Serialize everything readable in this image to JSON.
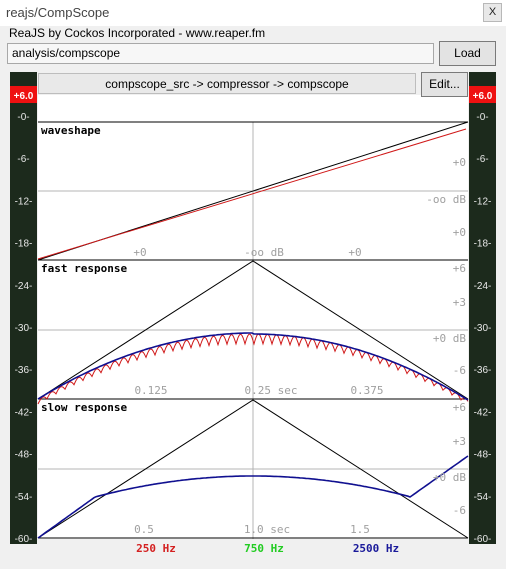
{
  "window": {
    "title": "reajs/CompScope",
    "close_glyph": "X"
  },
  "plugin": {
    "subtitle": "ReaJS by Cockos Incorporated - www.reaper.fm"
  },
  "path_field": {
    "value": "analysis/compscope"
  },
  "load_button": {
    "label": "Load"
  },
  "routing": {
    "text": "compscope_src -> compressor -> compscope"
  },
  "edit_button": {
    "label": "Edit..."
  },
  "meters": {
    "left_peak": "+6.0",
    "right_peak": "+6.0",
    "scale": [
      "-0-",
      "-6-",
      "-12-",
      "-18-",
      "-24-",
      "-30-",
      "-36-",
      "-42-",
      "-48-",
      "-54-",
      "-60-"
    ]
  },
  "panels": {
    "waveshape": {
      "title": "waveshape",
      "right_labels": [
        "+0",
        "-oo dB",
        "+0"
      ],
      "bottom_labels": [
        "+0",
        "-oo dB",
        "+0"
      ]
    },
    "fast": {
      "title": "fast response",
      "right_labels": [
        "+6",
        "+3",
        "+0 dB",
        "-6"
      ],
      "bottom_labels": [
        "0.125",
        "0.25 sec",
        "0.375"
      ]
    },
    "slow": {
      "title": "slow response",
      "right_labels": [
        "+6",
        "+3",
        "+0 dB",
        "-6"
      ],
      "bottom_labels": [
        "0.5",
        "1.0 sec",
        "1.5"
      ]
    }
  },
  "legend": [
    {
      "label": "250 Hz",
      "color": "#d42020"
    },
    {
      "label": "750 Hz",
      "color": "#22cc22"
    },
    {
      "label": "2500 Hz",
      "color": "#1a1a9a"
    }
  ],
  "colors": {
    "red_curve": "#d01818",
    "blue_curve": "#101090",
    "grid": "#b4b4b4",
    "axis_text": "#a0a0a0",
    "meter_peak": "#ee1111"
  }
}
